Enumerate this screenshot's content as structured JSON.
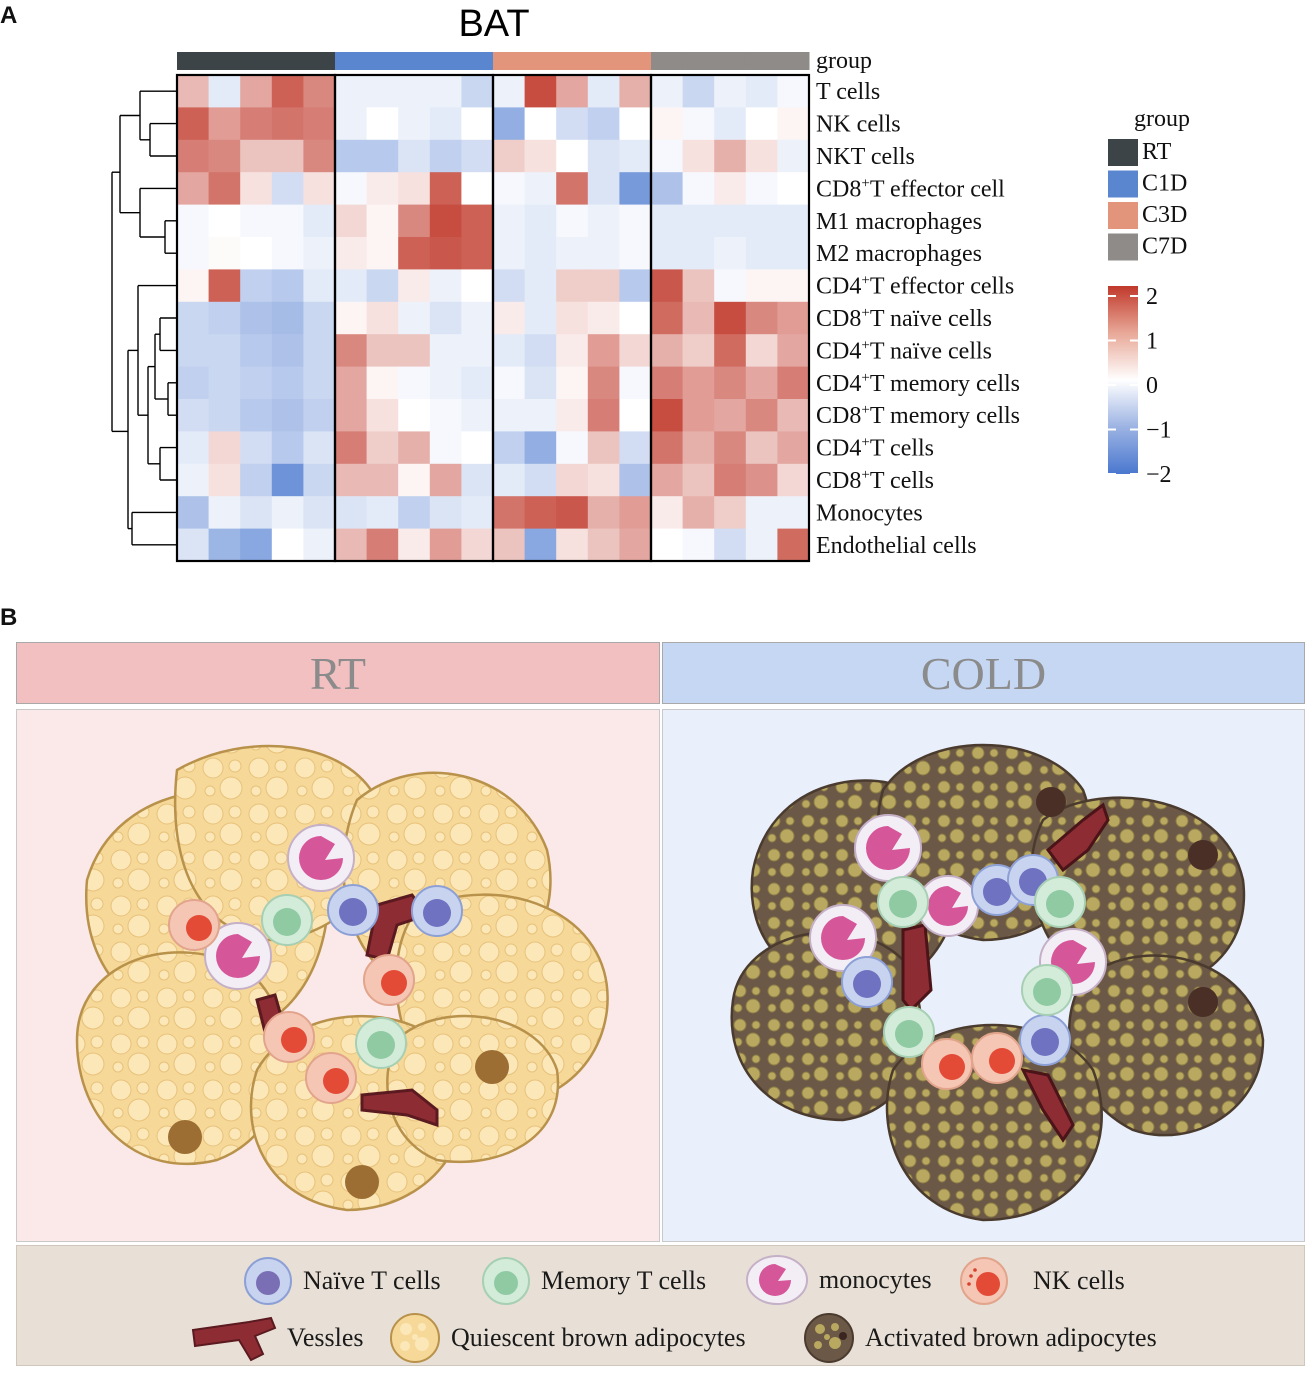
{
  "panel_a": {
    "letter": "A",
    "title": "BAT",
    "group_label": "group",
    "groups": [
      {
        "name": "RT",
        "color": "#3d4447"
      },
      {
        "name": "C1D",
        "color": "#5a86d0"
      },
      {
        "name": "C3D",
        "color": "#e3957c"
      },
      {
        "name": "C7D",
        "color": "#8e8b89"
      }
    ],
    "legend_title": "group",
    "scale_ticks": [
      "2",
      "1",
      "0",
      "−1",
      "−2"
    ],
    "chart_data": {
      "type": "heatmap",
      "title": "BAT",
      "columns_per_group": 5,
      "value_range": [
        -2,
        2
      ],
      "rows": [
        {
          "label": "T cells",
          "sup": "",
          "values": [
            0.7,
            -0.3,
            0.9,
            1.6,
            1.2,
            -0.2,
            -0.2,
            -0.2,
            -0.2,
            -0.6,
            -0.2,
            1.8,
            0.9,
            -0.3,
            0.8,
            -0.2,
            -0.6,
            -0.2,
            -0.3,
            -0.1
          ]
        },
        {
          "label": "NK cells",
          "sup": "",
          "values": [
            1.6,
            1.0,
            1.3,
            1.4,
            1.3,
            -0.2,
            0.0,
            -0.2,
            -0.3,
            0.0,
            -1.2,
            0.0,
            -0.5,
            -0.7,
            0.0,
            0.1,
            -0.1,
            -0.3,
            0.0,
            0.1
          ]
        },
        {
          "label": "NKT cells",
          "sup": "",
          "values": [
            1.3,
            1.2,
            0.6,
            0.6,
            1.2,
            -0.8,
            -0.8,
            -0.4,
            -0.7,
            -0.5,
            0.5,
            0.3,
            0.0,
            -0.4,
            -0.3,
            -0.1,
            0.3,
            0.8,
            0.3,
            -0.2
          ]
        },
        {
          "label": "CD8",
          "sup": "+",
          "rest": "T effector cell",
          "values": [
            0.9,
            1.4,
            0.3,
            -0.5,
            0.3,
            -0.1,
            0.2,
            0.3,
            1.6,
            0.0,
            -0.1,
            -0.2,
            1.4,
            -0.4,
            -1.5,
            -0.9,
            -0.1,
            0.2,
            -0.1,
            0.0
          ]
        },
        {
          "label": "M1 macrophages",
          "sup": "",
          "values": [
            -0.1,
            0.0,
            -0.1,
            -0.1,
            -0.3,
            0.4,
            0.1,
            1.2,
            1.8,
            1.6,
            -0.2,
            -0.3,
            -0.1,
            -0.2,
            -0.1,
            -0.3,
            -0.3,
            -0.3,
            -0.3,
            -0.3
          ]
        },
        {
          "label": "M2 macrophages",
          "sup": "",
          "values": [
            -0.1,
            0.05,
            0.0,
            -0.1,
            -0.2,
            0.2,
            0.1,
            1.6,
            1.7,
            1.6,
            -0.2,
            -0.3,
            -0.2,
            -0.2,
            -0.1,
            -0.3,
            -0.3,
            -0.2,
            -0.3,
            -0.3
          ]
        },
        {
          "label": "CD4",
          "sup": "+",
          "rest": "T effector cells",
          "values": [
            0.1,
            1.6,
            -0.7,
            -0.8,
            -0.3,
            -0.3,
            -0.6,
            0.2,
            -0.2,
            0.0,
            -0.5,
            -0.3,
            0.5,
            0.5,
            -0.8,
            1.7,
            0.6,
            -0.1,
            0.1,
            0.1
          ]
        },
        {
          "label": "CD8",
          "sup": "+",
          "rest": "T naïve cells",
          "values": [
            -0.6,
            -0.7,
            -0.9,
            -1.0,
            -0.6,
            0.1,
            0.3,
            -0.2,
            -0.4,
            -0.2,
            0.2,
            -0.3,
            0.3,
            0.2,
            0.0,
            1.5,
            0.7,
            1.8,
            1.2,
            1.0
          ]
        },
        {
          "label": "CD4",
          "sup": "+",
          "rest": "T naïve cells",
          "values": [
            -0.6,
            -0.6,
            -0.8,
            -0.9,
            -0.6,
            1.2,
            0.6,
            0.6,
            -0.2,
            -0.2,
            -0.3,
            -0.5,
            0.2,
            1.0,
            0.4,
            0.8,
            0.5,
            1.5,
            0.4,
            0.9
          ]
        },
        {
          "label": "CD4",
          "sup": "+",
          "rest": "T memory cells",
          "values": [
            -0.7,
            -0.6,
            -0.7,
            -0.8,
            -0.6,
            0.9,
            0.1,
            -0.1,
            -0.2,
            -0.3,
            -0.1,
            -0.4,
            0.1,
            1.2,
            -0.1,
            1.3,
            1.0,
            1.2,
            0.9,
            1.3
          ]
        },
        {
          "label": "CD8",
          "sup": "+",
          "rest": "T memory cells",
          "values": [
            -0.5,
            -0.6,
            -0.8,
            -0.9,
            -0.7,
            0.9,
            0.3,
            0.0,
            -0.1,
            -0.2,
            -0.2,
            -0.2,
            0.2,
            1.3,
            0.0,
            1.8,
            1.0,
            0.9,
            1.2,
            0.7
          ]
        },
        {
          "label": "CD4",
          "sup": "+",
          "rest": "T cells",
          "values": [
            -0.3,
            0.4,
            -0.5,
            -0.8,
            -0.4,
            1.3,
            0.5,
            0.8,
            -0.1,
            0.0,
            -0.7,
            -1.2,
            -0.1,
            0.6,
            -0.5,
            1.4,
            0.8,
            1.2,
            0.6,
            0.9
          ]
        },
        {
          "label": "CD8",
          "sup": "+",
          "rest": "T cells",
          "values": [
            -0.2,
            0.3,
            -0.7,
            -1.6,
            -0.6,
            0.7,
            0.7,
            0.1,
            0.9,
            -0.4,
            -0.3,
            -0.5,
            0.4,
            0.3,
            -0.9,
            0.9,
            0.6,
            1.3,
            1.1,
            0.4
          ]
        },
        {
          "label": "Monocytes",
          "sup": "",
          "values": [
            -0.9,
            -0.2,
            -0.4,
            -0.2,
            -0.4,
            -0.4,
            -0.3,
            -0.7,
            -0.4,
            -0.3,
            1.4,
            1.6,
            1.7,
            0.8,
            1.0,
            0.2,
            0.8,
            0.5,
            -0.2,
            -0.2
          ]
        },
        {
          "label": "Endothelial cells",
          "sup": "",
          "values": [
            -0.4,
            -1.1,
            -1.3,
            0.0,
            -0.2,
            0.7,
            1.3,
            0.2,
            1.0,
            0.4,
            0.6,
            -1.3,
            0.3,
            0.6,
            0.9,
            0.0,
            -0.1,
            -0.5,
            -0.2,
            1.5
          ]
        }
      ]
    }
  },
  "panel_b": {
    "letter": "B",
    "header_left": "RT",
    "header_right": "COLD",
    "legend": {
      "naive": "Naïve T cells",
      "memory": "Memory T cells",
      "monocytes": "monocytes",
      "nk": "NK cells",
      "vessels": "Vessles",
      "quiescent": "Quiescent brown adipocytes",
      "activated": "Activated brown adipocytes"
    }
  }
}
